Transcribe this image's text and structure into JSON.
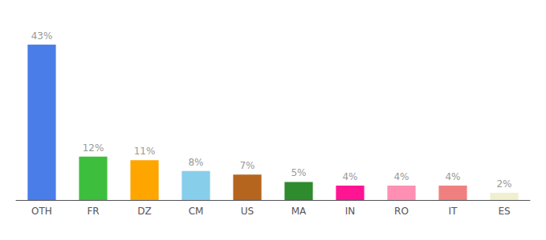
{
  "chart_data": {
    "type": "bar",
    "categories": [
      "OTH",
      "FR",
      "DZ",
      "CM",
      "US",
      "MA",
      "IN",
      "RO",
      "IT",
      "ES"
    ],
    "values": [
      43,
      12,
      11,
      8,
      7,
      5,
      4,
      4,
      4,
      2
    ],
    "value_labels": [
      "43%",
      "12%",
      "11%",
      "8%",
      "7%",
      "5%",
      "4%",
      "4%",
      "4%",
      "2%"
    ],
    "colors": [
      "#4a7de8",
      "#3dbf3d",
      "#ffa500",
      "#87ceeb",
      "#b5651d",
      "#2e8b2e",
      "#ff1493",
      "#ff90b3",
      "#f08080",
      "#f0f0d0"
    ],
    "ylim": [
      0,
      50
    ],
    "data_labels": true,
    "tick_labels": "x",
    "grid": false
  }
}
